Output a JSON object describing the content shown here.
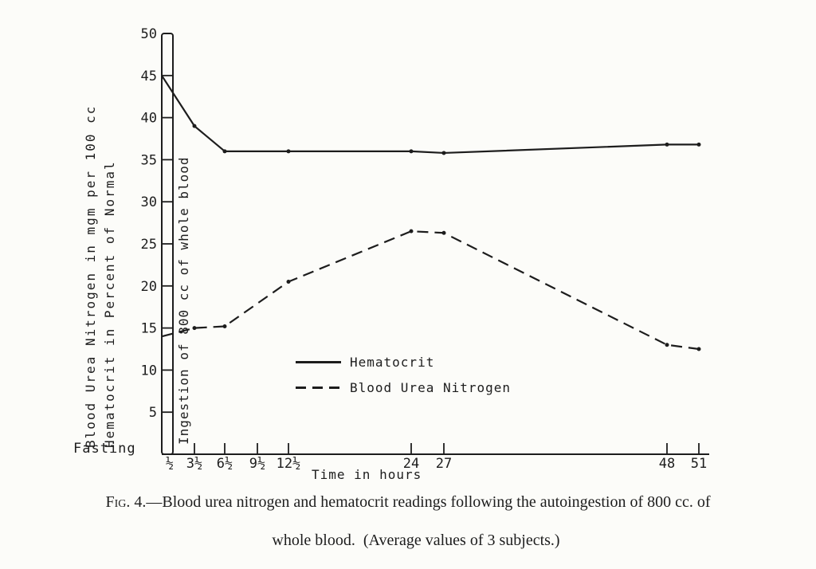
{
  "colors": {
    "ink": "#1d1d1d",
    "paper": "#fcfcf9"
  },
  "caption": {
    "prefix": "Fig. 4.",
    "line1_rest": "—Blood urea nitrogen and hematocrit readings following the autoingestion of 800 cc. of",
    "line2": "whole blood.  (Average values of 3 subjects.)"
  },
  "chart_data": {
    "type": "line",
    "title": "",
    "xlabel": "Time in hours",
    "ylabel_lines": [
      "Blood Urea Nitrogen in mgm per 100 cc",
      "Hematocrit in Percent of Normal"
    ],
    "axis_annotation": "Ingestion of 800 cc of whole blood",
    "baseline_label": "Fasting",
    "x_tick_labels": [
      "½",
      "3½",
      "6½",
      "9½",
      "12½",
      "24",
      "27",
      "48",
      "51"
    ],
    "x_tick_hours": [
      0.5,
      3.5,
      6.5,
      9.5,
      12.5,
      24,
      27,
      48,
      51
    ],
    "y_ticks": [
      5,
      10,
      15,
      20,
      25,
      30,
      35,
      40,
      45,
      50
    ],
    "ylim": [
      0,
      50
    ],
    "grid": false,
    "legend_position": "inside-lower-middle",
    "legend": [
      {
        "name": "Hematocrit",
        "style": "solid"
      },
      {
        "name": "Blood Urea Nitrogen",
        "style": "dashed"
      }
    ],
    "series": [
      {
        "name": "Hematocrit",
        "style": "solid",
        "points": [
          {
            "t": "Fasting",
            "v": 45
          },
          {
            "t": 3.5,
            "v": 39
          },
          {
            "t": 6.5,
            "v": 36
          },
          {
            "t": 12.5,
            "v": 36
          },
          {
            "t": 24,
            "v": 36
          },
          {
            "t": 27,
            "v": 35.8
          },
          {
            "t": 48,
            "v": 36.8
          },
          {
            "t": 51,
            "v": 36.8
          }
        ]
      },
      {
        "name": "Blood Urea Nitrogen",
        "style": "dashed",
        "points": [
          {
            "t": "Fasting",
            "v": 14
          },
          {
            "t": 3.5,
            "v": 15
          },
          {
            "t": 6.5,
            "v": 15.2
          },
          {
            "t": 12.5,
            "v": 20.5
          },
          {
            "t": 24,
            "v": 26.5
          },
          {
            "t": 27,
            "v": 26.3
          },
          {
            "t": 48,
            "v": 13
          },
          {
            "t": 51,
            "v": 12.5
          }
        ]
      }
    ]
  }
}
